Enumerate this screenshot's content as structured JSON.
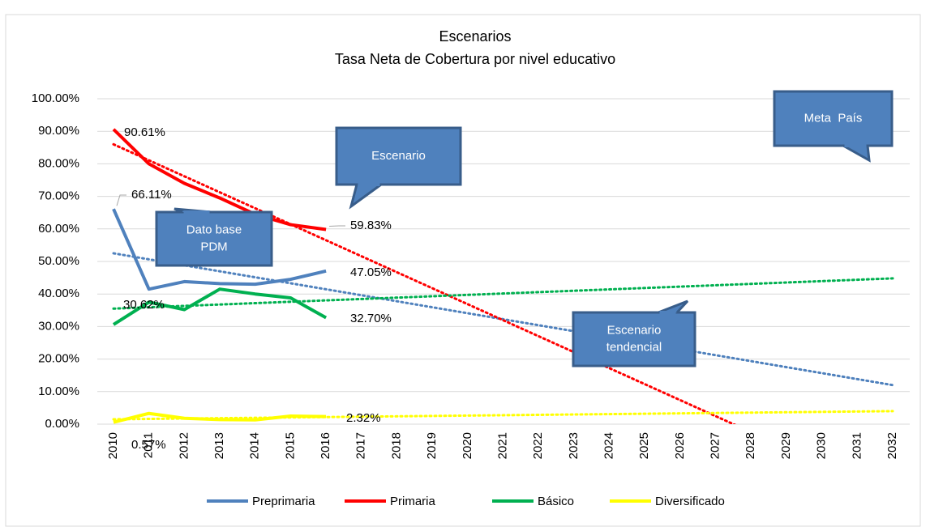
{
  "chart_data": {
    "type": "line",
    "title": "Escenarios",
    "subtitle": "Tasa Neta de Cobertura por nivel educativo",
    "categories": [
      "2010",
      "2011",
      "2012",
      "2013",
      "2014",
      "2015",
      "2016",
      "2017",
      "2018",
      "2019",
      "2020",
      "2021",
      "2022",
      "2023",
      "2024",
      "2025",
      "2026",
      "2027",
      "2028",
      "2029",
      "2030",
      "2031",
      "2032"
    ],
    "ylim": [
      0,
      100
    ],
    "yticks": [
      {
        "value": 0,
        "label": "0.00%"
      },
      {
        "value": 10,
        "label": "10.00%"
      },
      {
        "value": 20,
        "label": "20.00%"
      },
      {
        "value": 30,
        "label": "30.00%"
      },
      {
        "value": 40,
        "label": "40.00%"
      },
      {
        "value": 50,
        "label": "50.00%"
      },
      {
        "value": 60,
        "label": "60.00%"
      },
      {
        "value": 70,
        "label": "70.00%"
      },
      {
        "value": 80,
        "label": "80.00%"
      },
      {
        "value": 90,
        "label": "90.00%"
      },
      {
        "value": 100,
        "label": "100.00%"
      }
    ],
    "grid": true,
    "legend": "bottom",
    "series": [
      {
        "name": "Preprimaria",
        "color": "#4f81bd",
        "values": [
          66.11,
          41.5,
          43.8,
          43.2,
          43.0,
          44.5,
          47.05,
          null,
          null,
          null,
          null,
          null,
          null,
          null,
          null,
          null,
          null,
          null,
          null,
          null,
          null,
          null,
          null
        ],
        "value_labels": [
          "66.11%",
          null,
          null,
          null,
          null,
          null,
          "47.05%",
          null,
          null,
          null,
          null,
          null,
          null,
          null,
          null,
          null,
          null,
          null,
          null,
          null,
          null,
          null,
          null
        ],
        "trend": [
          52.5,
          12
        ]
      },
      {
        "name": "Primaria",
        "color": "#ff0000",
        "values": [
          90.61,
          80,
          74,
          69.5,
          64.5,
          61.3,
          59.83,
          null,
          null,
          null,
          null,
          null,
          null,
          null,
          null,
          null,
          null,
          null,
          null,
          null,
          null,
          null,
          null
        ],
        "value_labels": [
          "90.61%",
          null,
          null,
          null,
          null,
          null,
          "59.83%",
          null,
          null,
          null,
          null,
          null,
          null,
          null,
          null,
          null,
          null,
          null,
          null,
          null,
          null,
          null,
          null
        ],
        "trend": [
          86,
          -22.1
        ]
      },
      {
        "name": "Básico",
        "color": "#00b050",
        "values": [
          30.62,
          37.5,
          35.2,
          41.5,
          40,
          38.8,
          32.7,
          null,
          null,
          null,
          null,
          null,
          null,
          null,
          null,
          null,
          null,
          null,
          null,
          null,
          null,
          null,
          null
        ],
        "value_labels": [
          "30.62%",
          null,
          null,
          null,
          null,
          null,
          "32.70%",
          null,
          null,
          null,
          null,
          null,
          null,
          null,
          null,
          null,
          null,
          null,
          null,
          null,
          null,
          null,
          null
        ],
        "trend": [
          35.5,
          44.8
        ]
      },
      {
        "name": "Diversificado",
        "color": "#ffff00",
        "values": [
          0.57,
          3.3,
          1.8,
          1.4,
          1.3,
          2.5,
          2.32,
          null,
          null,
          null,
          null,
          null,
          null,
          null,
          null,
          null,
          null,
          null,
          null,
          null,
          null,
          null,
          null
        ],
        "value_labels": [
          "0.57%",
          null,
          null,
          null,
          null,
          null,
          "2.32%",
          null,
          null,
          null,
          null,
          null,
          null,
          null,
          null,
          null,
          null,
          null,
          null,
          null,
          null,
          null,
          null
        ],
        "trend": [
          1.5,
          4
        ]
      }
    ],
    "annotations": [
      {
        "lines": [
          "Escenario"
        ]
      },
      {
        "lines": [
          "Dato base",
          "PDM"
        ]
      },
      {
        "lines": [
          "Meta  País"
        ]
      },
      {
        "lines": [
          "Escenario",
          "tendencial"
        ]
      }
    ]
  }
}
